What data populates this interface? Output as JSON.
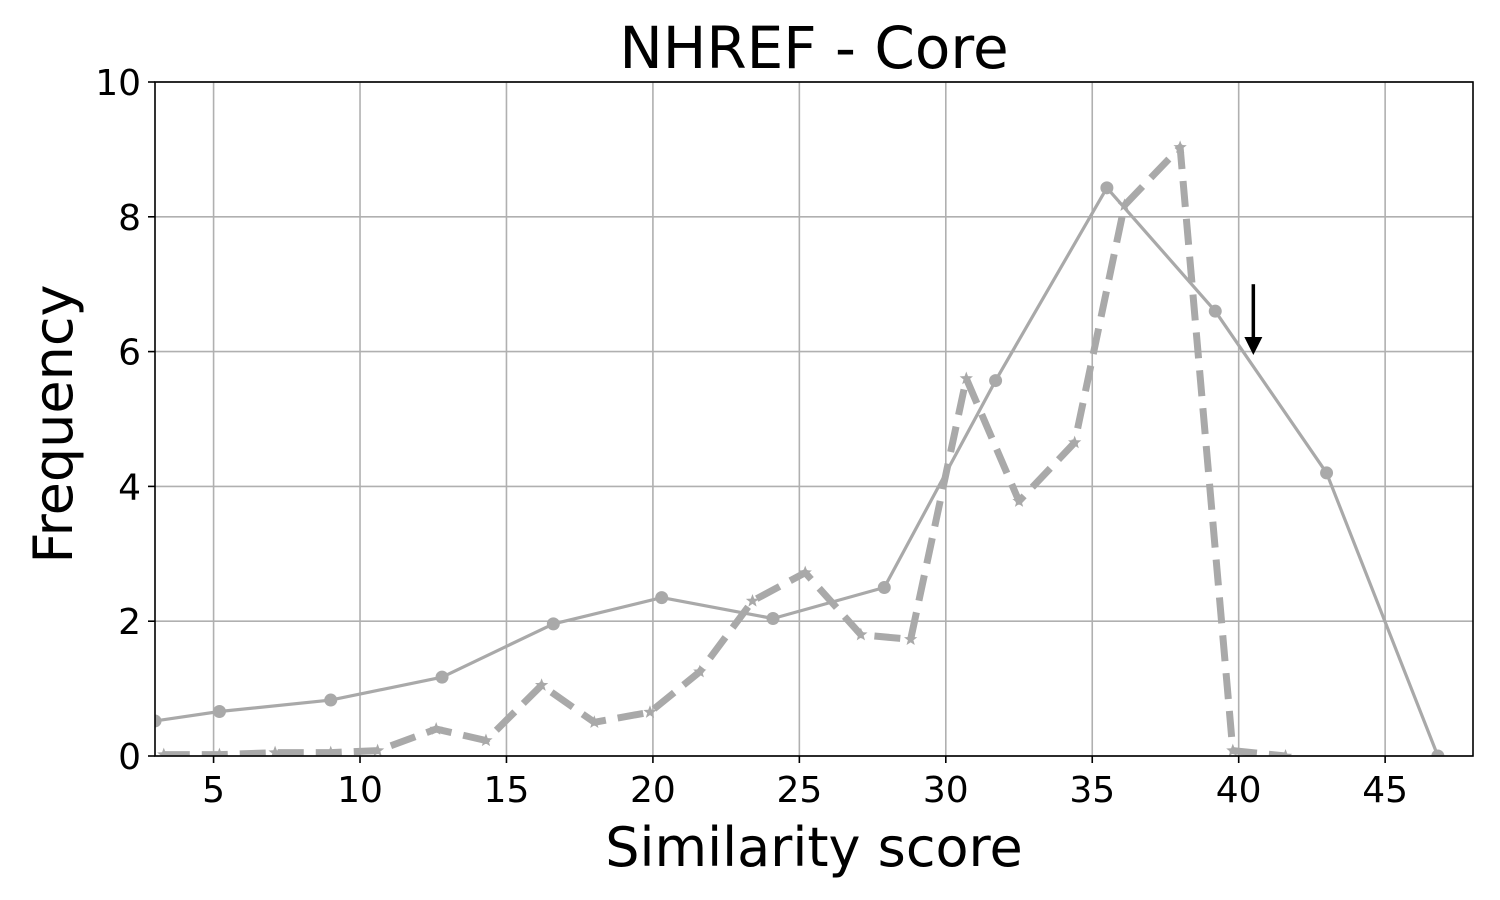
{
  "chart_data": {
    "type": "line",
    "title": "NHREF  - Core",
    "xlabel": "Similarity score",
    "ylabel": "Frequency",
    "xlim": [
      3,
      48
    ],
    "ylim": [
      0,
      10
    ],
    "xticks": [
      5,
      10,
      15,
      20,
      25,
      30,
      35,
      40,
      45
    ],
    "yticks": [
      0,
      2,
      4,
      6,
      8,
      10
    ],
    "grid": true,
    "series": [
      {
        "style": "solid",
        "marker": "circle",
        "color": "#a9a9a9",
        "x": [
          3.0,
          5.2,
          9.0,
          12.8,
          16.6,
          20.3,
          24.1,
          27.9,
          31.7,
          35.5,
          39.2,
          43.0,
          46.8
        ],
        "y": [
          0.52,
          0.66,
          0.83,
          1.17,
          1.96,
          2.35,
          2.04,
          2.5,
          5.57,
          8.43,
          6.6,
          4.2,
          0.0
        ]
      },
      {
        "style": "dashed",
        "marker": "star",
        "color": "#a9a9a9",
        "x": [
          3.3,
          5.2,
          7.1,
          9.0,
          10.6,
          12.6,
          14.3,
          16.2,
          18.0,
          19.9,
          21.6,
          23.4,
          25.2,
          27.1,
          28.8,
          30.7,
          32.5,
          34.4,
          36.1,
          38.0,
          39.8,
          41.6
        ],
        "y": [
          0.02,
          0.02,
          0.05,
          0.05,
          0.08,
          0.4,
          0.23,
          1.05,
          0.5,
          0.65,
          1.25,
          2.3,
          2.72,
          1.8,
          1.73,
          5.6,
          3.78,
          4.65,
          8.17,
          9.03,
          0.08,
          0.0
        ]
      }
    ],
    "annotations": [
      {
        "type": "arrow",
        "direction": "down",
        "x": 40.5,
        "y_from": 7.0,
        "y_to": 5.95,
        "color": "#000000"
      }
    ]
  }
}
